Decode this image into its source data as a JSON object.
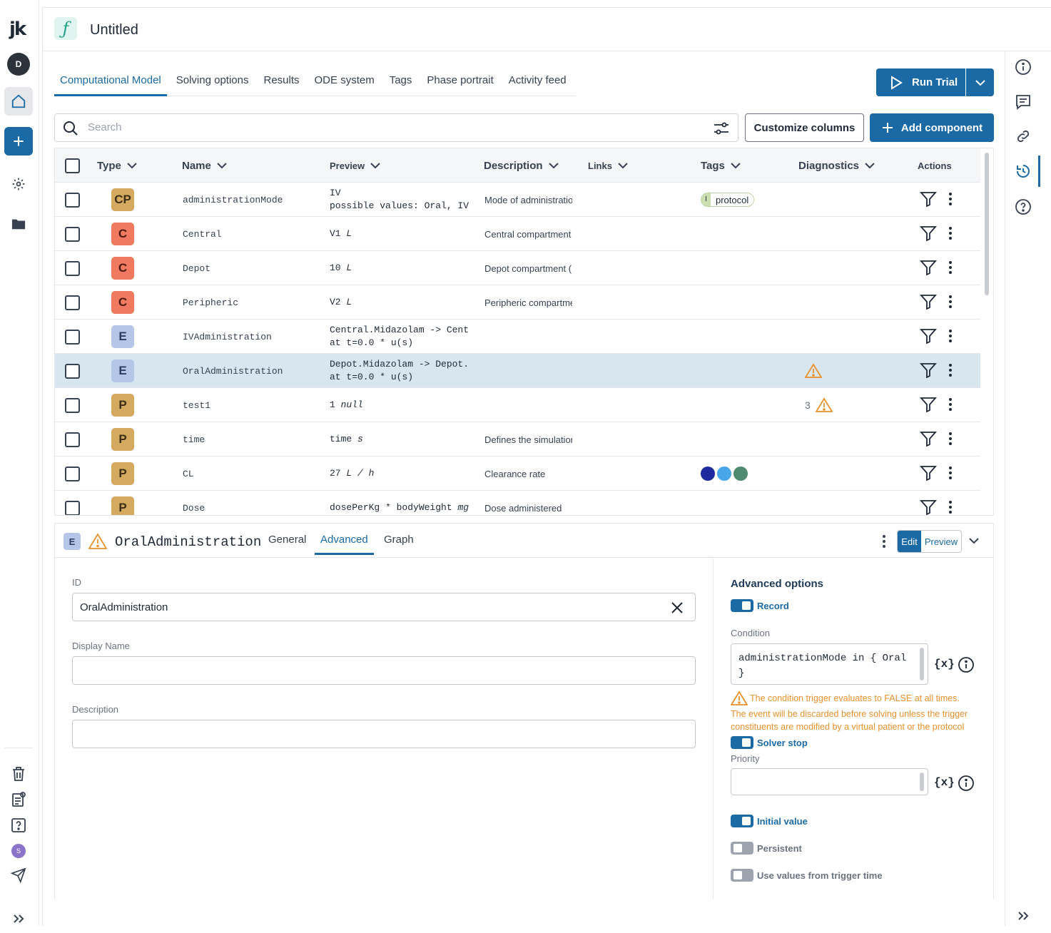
{
  "app": {
    "logo": "jk",
    "user_initial": "D",
    "bottom_user_initial": "S",
    "title": "Untitled",
    "fx_icon": "ƒ"
  },
  "tabs": [
    {
      "label": "Computational Model",
      "active": true
    },
    {
      "label": "Solving options",
      "active": false
    },
    {
      "label": "Results",
      "active": false
    },
    {
      "label": "ODE system",
      "active": false
    },
    {
      "label": "Tags",
      "active": false
    },
    {
      "label": "Phase portrait",
      "active": false
    },
    {
      "label": "Activity feed",
      "active": false
    }
  ],
  "toolbar": {
    "run_trial": "Run Trial",
    "search_placeholder": "Search",
    "customize_columns": "Customize columns",
    "add_component": "Add component"
  },
  "table": {
    "columns": {
      "type": "Type",
      "name": "Name",
      "preview": "Preview",
      "description": "Description",
      "links": "Links",
      "tags": "Tags",
      "diagnostics": "Diagnostics",
      "actions": "Actions"
    },
    "rows": [
      {
        "type": "CP",
        "name": "administrationMode",
        "preview1": "IV",
        "preview2": "possible values: Oral, IV",
        "description": "Mode of administration",
        "tag": "protocol",
        "tag_prefix": "I"
      },
      {
        "type": "C",
        "name": "Central",
        "preview1": "V1 ",
        "unit": "L",
        "description": "Central compartment"
      },
      {
        "type": "C",
        "name": "Depot",
        "preview1": "10 ",
        "unit": "L",
        "description": "Depot compartment ("
      },
      {
        "type": "C",
        "name": "Peripheric",
        "preview1": "V2 ",
        "unit": "L",
        "description": "Peripheric compartment"
      },
      {
        "type": "E",
        "name": "IVAdministration",
        "preview1": "Central.Midazolam -> Central",
        "preview2": "at t=0.0 * u(s)",
        "description": ""
      },
      {
        "type": "E",
        "name": "OralAdministration",
        "preview1": "Depot.Midazolam -> Depot.Mi",
        "preview2": "at t=0.0 * u(s)",
        "description": "",
        "warning": true,
        "selected": true
      },
      {
        "type": "P",
        "name": "test1",
        "preview1": "1 ",
        "unit": "null",
        "description": "",
        "warning": true,
        "warning_count": "3"
      },
      {
        "type": "P",
        "name": "time",
        "preview1": "time ",
        "unit": "s",
        "description": "Defines the simulation"
      },
      {
        "type": "P",
        "name": "CL",
        "preview1": "27 ",
        "unit": "L / h",
        "description": "Clearance rate",
        "tag_dots": [
          "#1e2a9e",
          "#48a6e8",
          "#4f8a6e"
        ]
      },
      {
        "type": "P",
        "name": "Dose",
        "preview1": "dosePerKg * bodyWeight ",
        "unit": "mg",
        "description": "Dose administered"
      }
    ]
  },
  "detail": {
    "badge": "E",
    "title": "OralAdministration",
    "tabs": [
      {
        "label": "General",
        "active": false
      },
      {
        "label": "Advanced",
        "active": true
      },
      {
        "label": "Graph",
        "active": false
      }
    ],
    "edit_label": "Edit",
    "preview_label": "Preview",
    "id_label": "ID",
    "id_value": "OralAdministration",
    "display_name_label": "Display Name",
    "display_name_value": "",
    "description_label": "Description",
    "description_value": "",
    "advanced": {
      "title": "Advanced options",
      "record": "Record",
      "condition_label": "Condition",
      "condition_line1": "administrationMode in { Oral",
      "condition_line2": "}",
      "var_btn": "{x}",
      "warning_line1": "The condition trigger evaluates to FALSE at all times.",
      "warning_line2": "The event will be discarded before solving unless the trigger",
      "warning_line3": "constituents are modified by a virtual patient or the protocol",
      "solver_stop": "Solver stop",
      "priority_label": "Priority",
      "priority_value": "",
      "initial_value": "Initial value",
      "persistent": "Persistent",
      "use_values": "Use values from trigger time"
    }
  },
  "colors": {
    "accent": "#1b6aa5",
    "warning": "#e8912d",
    "selected_row": "#d8e6f0"
  }
}
